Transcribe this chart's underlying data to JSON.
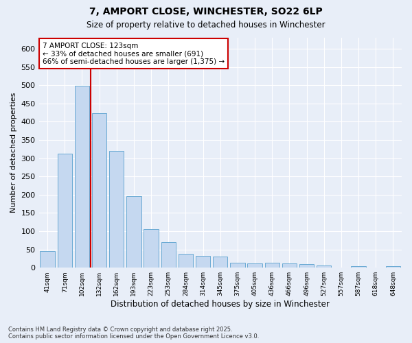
{
  "title_line1": "7, AMPORT CLOSE, WINCHESTER, SO22 6LP",
  "title_line2": "Size of property relative to detached houses in Winchester",
  "xlabel": "Distribution of detached houses by size in Winchester",
  "ylabel": "Number of detached properties",
  "categories": [
    "41sqm",
    "71sqm",
    "102sqm",
    "132sqm",
    "162sqm",
    "193sqm",
    "223sqm",
    "253sqm",
    "284sqm",
    "314sqm",
    "345sqm",
    "375sqm",
    "405sqm",
    "436sqm",
    "466sqm",
    "496sqm",
    "527sqm",
    "557sqm",
    "587sqm",
    "618sqm",
    "648sqm"
  ],
  "values": [
    46,
    312,
    498,
    424,
    320,
    195,
    105,
    70,
    38,
    33,
    30,
    13,
    12,
    14,
    12,
    9,
    6,
    0,
    4,
    0,
    4
  ],
  "bar_color": "#c5d8f0",
  "bar_edge_color": "#6aaad4",
  "bg_color": "#e8eef8",
  "grid_color": "#ffffff",
  "vline_x_idx": 3,
  "vline_color": "#cc0000",
  "annotation_text": "7 AMPORT CLOSE: 123sqm\n← 33% of detached houses are smaller (691)\n66% of semi-detached houses are larger (1,375) →",
  "annotation_box_color": "#ffffff",
  "annotation_box_edge": "#cc0000",
  "ylim": [
    0,
    630
  ],
  "yticks": [
    0,
    50,
    100,
    150,
    200,
    250,
    300,
    350,
    400,
    450,
    500,
    550,
    600
  ],
  "footer_line1": "Contains HM Land Registry data © Crown copyright and database right 2025.",
  "footer_line2": "Contains public sector information licensed under the Open Government Licence v3.0.",
  "figsize": [
    6.0,
    5.0
  ],
  "dpi": 100
}
